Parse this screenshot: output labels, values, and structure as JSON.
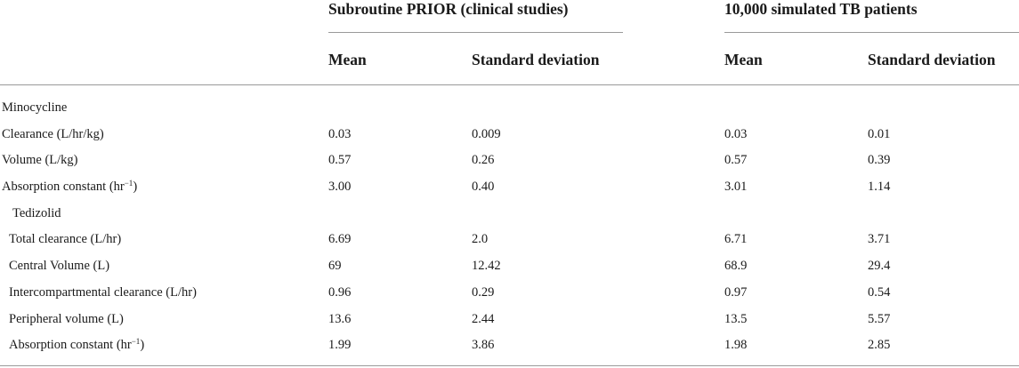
{
  "table": {
    "group_headers": {
      "prior": "Subroutine PRIOR (clinical studies)",
      "simulated": "10,000 simulated TB patients"
    },
    "column_headers": {
      "prior_mean": "Mean",
      "prior_sd": "Standard deviation",
      "sim_mean": "Mean",
      "sim_sd": "Standard deviation"
    },
    "rows": [
      {
        "label": "Minocycline",
        "section": true
      },
      {
        "label": "Clearance (L/hr/kg)",
        "prior_mean": "0.03",
        "prior_sd": "0.009",
        "sim_mean": "0.03",
        "sim_sd": "0.01"
      },
      {
        "label": "Volume (L/kg)",
        "prior_mean": "0.57",
        "prior_sd": "0.26",
        "sim_mean": "0.57",
        "sim_sd": "0.39"
      },
      {
        "label": "Absorption constant (hr",
        "label_sup": "−1",
        "label_suffix": ")",
        "prior_mean": "3.00",
        "prior_sd": "0.40",
        "sim_mean": "3.01",
        "sim_sd": "1.14"
      },
      {
        "label": "Tedizolid",
        "section": true
      },
      {
        "label": "Total clearance (L/hr)",
        "prior_mean": "6.69",
        "prior_sd": "2.0",
        "sim_mean": "6.71",
        "sim_sd": "3.71"
      },
      {
        "label": "Central Volume (L)",
        "prior_mean": "69",
        "prior_sd": "12.42",
        "sim_mean": "68.9",
        "sim_sd": "29.4"
      },
      {
        "label": "Intercompartmental clearance (L/hr)",
        "prior_mean": "0.96",
        "prior_sd": "0.29",
        "sim_mean": "0.97",
        "sim_sd": "0.54"
      },
      {
        "label": "Peripheral volume (L)",
        "prior_mean": "13.6",
        "prior_sd": "2.44",
        "sim_mean": "13.5",
        "sim_sd": "5.57"
      },
      {
        "label": "Absorption constant (hr",
        "label_sup": "−1",
        "label_suffix": ")",
        "prior_mean": "1.99",
        "prior_sd": "3.86",
        "sim_mean": "1.98",
        "sim_sd": "2.85"
      }
    ]
  }
}
